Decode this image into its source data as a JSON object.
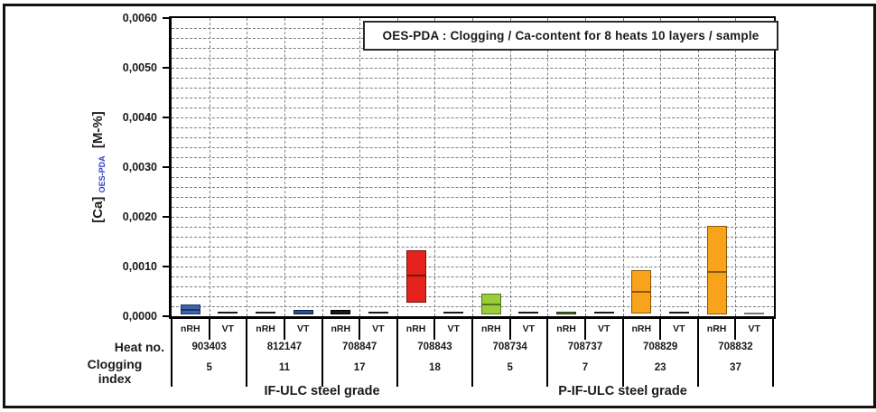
{
  "chart_data": {
    "type": "floating-bar",
    "title": "OES-PDA :  Clogging / Ca-content for 8 heats 10 layers / sample",
    "ylabel": {
      "prefix": "[Ca]",
      "subscript": "OES-PDA",
      "suffix": "[M-%]"
    },
    "y_axis": {
      "min": 0,
      "max": 0.006,
      "major_step": 0.001,
      "minor_step": 0.0002,
      "decimal_style": "comma",
      "tick_labels": [
        "0,0000",
        "0,0010",
        "0,0020",
        "0,0030",
        "0,0040",
        "0,0050",
        "0,0060"
      ]
    },
    "grid": "dashed",
    "condition_labels": [
      "nRH",
      "VT"
    ],
    "row_headers": {
      "heat": "Heat no.",
      "clogging": [
        "Clogging",
        "index"
      ]
    },
    "groups": [
      {
        "heat_no": "903403",
        "clogging_index": "5",
        "samples": [
          {
            "cond": "nRH",
            "low": 3e-05,
            "high": 0.00024,
            "median": 0.00012,
            "fill": "#3E63B0",
            "edge": "#17375E"
          },
          {
            "cond": "VT",
            "low": 6e-05,
            "high": 0.0001,
            "fill": "#4f4f4f",
            "edge": "#1a1a1a"
          }
        ]
      },
      {
        "heat_no": "812147",
        "clogging_index": "11",
        "samples": [
          {
            "cond": "nRH",
            "low": 6e-05,
            "high": 0.0001,
            "fill": "#4f4f4f",
            "edge": "#1a1a1a"
          },
          {
            "cond": "VT",
            "low": 4e-05,
            "high": 0.00012,
            "fill": "#2E4D8E",
            "edge": "#0F243E"
          }
        ]
      },
      {
        "heat_no": "708847",
        "clogging_index": "17",
        "samples": [
          {
            "cond": "nRH",
            "low": 4e-05,
            "high": 0.00012,
            "fill": "#1a1a1a",
            "edge": "#000000"
          },
          {
            "cond": "VT",
            "low": 6e-05,
            "high": 0.0001,
            "fill": "#4f4f4f",
            "edge": "#1a1a1a"
          }
        ]
      },
      {
        "heat_no": "708843",
        "clogging_index": "18",
        "samples": [
          {
            "cond": "nRH",
            "low": 0.00027,
            "high": 0.00133,
            "median": 0.00082,
            "fill": "#E3231C",
            "edge": "#7A1410"
          },
          {
            "cond": "VT",
            "low": 5e-05,
            "high": 9e-05,
            "fill": "#4f4f4f",
            "edge": "#1a1a1a"
          }
        ]
      },
      {
        "heat_no": "708734",
        "clogging_index": "5",
        "samples": [
          {
            "cond": "nRH",
            "low": 4e-05,
            "high": 0.00045,
            "median": 0.00024,
            "fill": "#9CCB3B",
            "edge": "#4E7A1E"
          },
          {
            "cond": "VT",
            "low": 6e-05,
            "high": 0.0001,
            "fill": "#4f4f4f",
            "edge": "#1a1a1a"
          }
        ]
      },
      {
        "heat_no": "708737",
        "clogging_index": "7",
        "samples": [
          {
            "cond": "nRH",
            "low": 4e-05,
            "high": 0.0001,
            "fill": "#4E7A1E",
            "edge": "#1F3B0E"
          },
          {
            "cond": "VT",
            "low": 6e-05,
            "high": 0.0001,
            "fill": "#4f4f4f",
            "edge": "#1a1a1a"
          }
        ]
      },
      {
        "heat_no": "708829",
        "clogging_index": "23",
        "samples": [
          {
            "cond": "nRH",
            "low": 5e-05,
            "high": 0.00093,
            "median": 0.00049,
            "fill": "#F9A21B",
            "edge": "#8A5A08"
          },
          {
            "cond": "VT",
            "low": 6e-05,
            "high": 0.0001,
            "fill": "#4f4f4f",
            "edge": "#1a1a1a"
          }
        ]
      },
      {
        "heat_no": "708832",
        "clogging_index": "37",
        "samples": [
          {
            "cond": "nRH",
            "low": 4e-05,
            "high": 0.00182,
            "median": 0.00089,
            "fill": "#F9A21B",
            "edge": "#8A5A08"
          },
          {
            "cond": "VT",
            "low": 6e-05,
            "high": 8e-05,
            "fill": "#9E9E9E",
            "edge": "#7A7A7A"
          }
        ]
      }
    ],
    "grade_sections": [
      {
        "label": "IF-ULC steel grade",
        "group_span": 4
      },
      {
        "label": "P-IF-ULC steel grade",
        "group_span": 4
      }
    ],
    "colors": {
      "grid": "#7d7d7d",
      "axis": "#000000",
      "ylabel_subscript": "#2F3FC4"
    }
  }
}
